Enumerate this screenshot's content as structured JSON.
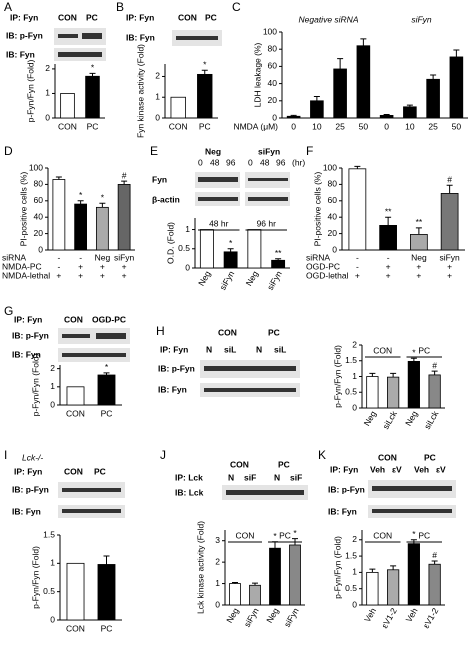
{
  "letters": [
    "A",
    "B",
    "C",
    "D",
    "E",
    "F",
    "G",
    "H",
    "I",
    "J",
    "K"
  ],
  "blots": {
    "A": [
      "IP: Fyn",
      "CON",
      "PC",
      "IB: p-Fyn",
      "IB: Fyn"
    ],
    "B": [
      "IP: Fyn",
      "CON",
      "PC",
      "IB: Fyn"
    ],
    "E": [
      "Neg",
      "siFyn",
      "0",
      "48",
      "96",
      "0",
      "48",
      "96",
      "(hr)",
      "Fyn",
      "β-actin"
    ],
    "G": [
      "IP: Fyn",
      "CON",
      "OGD-PC",
      "IB: p-Fyn",
      "IB: Fyn"
    ],
    "H": [
      "CON",
      "PC",
      "IP: Fyn",
      "N",
      "siL",
      "N",
      "siL",
      "IB: p-Fyn",
      "IB: Fyn"
    ],
    "I": [
      "Lck-/-",
      "IP: Fyn",
      "CON",
      "PC",
      "IB: p-Fyn",
      "IB: Fyn"
    ],
    "J": [
      "CON",
      "PC",
      "IP: Lck",
      "N",
      "siF",
      "N",
      "siF",
      "IB: Lck"
    ],
    "K": [
      "CON",
      "PC",
      "IP: Fyn",
      "Veh",
      "εV",
      "Veh",
      "εV",
      "IB: p-Fyn",
      "IB: Fyn"
    ]
  },
  "chart_data": [
    {
      "type": "bar",
      "ylabel": "p-Fyn/Fyn (Fold)",
      "categories": [
        "CON",
        "PC"
      ],
      "values": [
        1,
        1.7
      ],
      "errors": [
        null,
        0.12
      ],
      "colors": [
        "#ffffff",
        "#000000"
      ],
      "annotations": [
        null,
        "*"
      ],
      "ylim": [
        0,
        2.2
      ],
      "yticks": [
        0,
        1,
        2
      ]
    },
    {
      "type": "bar",
      "ylabel": "Fyn kinase activity (Fold)",
      "categories": [
        "CON",
        "PC"
      ],
      "values": [
        1,
        2.1
      ],
      "errors": [
        null,
        0.2
      ],
      "colors": [
        "#ffffff",
        "#000000"
      ],
      "annotations": [
        null,
        "*"
      ],
      "ylim": [
        0,
        2.6
      ],
      "yticks": [
        0,
        1,
        2
      ]
    },
    {
      "type": "bar",
      "ylabel": "LDH leakage (%)",
      "xlabel": "NMDA (μM)",
      "groups": [
        "Negative siRNA",
        "siFyn"
      ],
      "categories": [
        "0",
        "10",
        "25",
        "50",
        "0",
        "10",
        "25",
        "50"
      ],
      "values": [
        2,
        20,
        57,
        84,
        3,
        13,
        45,
        71
      ],
      "errors": [
        1,
        5,
        12,
        8,
        1,
        2,
        5,
        8
      ],
      "colors": [
        "#000000",
        "#000000",
        "#000000",
        "#000000",
        "#000000",
        "#000000",
        "#000000",
        "#000000"
      ],
      "ylim": [
        0,
        100
      ],
      "yticks": [
        0,
        20,
        40,
        60,
        80,
        100
      ]
    },
    {
      "type": "bar",
      "ylabel": "PI-positive cells (%)",
      "categories": [
        "",
        "",
        "",
        ""
      ],
      "values": [
        86,
        56,
        52,
        80
      ],
      "errors": [
        3,
        4,
        5,
        4
      ],
      "colors": [
        "#ffffff",
        "#000000",
        "#aaaaaa",
        "#666666"
      ],
      "annotations": [
        null,
        "*",
        "*",
        "#"
      ],
      "rows": [
        {
          "label": "siRNA",
          "cells": [
            "-",
            "-",
            "Neg",
            "siFyn"
          ]
        },
        {
          "label": "NMDA-PC",
          "cells": [
            "-",
            "+",
            "+",
            "+"
          ]
        },
        {
          "label": "NMDA-lethal",
          "cells": [
            "+",
            "+",
            "+",
            "+"
          ]
        }
      ],
      "ylim": [
        0,
        100
      ],
      "yticks": [
        0,
        20,
        40,
        60,
        80,
        100
      ]
    },
    {
      "type": "bar",
      "ylabel": "O.D. (Fold)",
      "groups": [
        "48 hr",
        "96 hr"
      ],
      "categories": [
        "Neg",
        "siFyn",
        "Neg",
        "siFyn"
      ],
      "values": [
        1,
        0.42,
        1,
        0.2
      ],
      "errors": [
        null,
        0.08,
        null,
        0.04
      ],
      "colors": [
        "#ffffff",
        "#000000",
        "#ffffff",
        "#000000"
      ],
      "annotations": [
        null,
        "*",
        null,
        "**"
      ],
      "ylim": [
        0,
        1.3
      ],
      "yticks": [
        0,
        0.5,
        1
      ]
    },
    {
      "type": "bar",
      "ylabel": "PI-positive cells (%)",
      "categories": [
        "",
        "",
        "",
        ""
      ],
      "values": [
        99,
        30,
        19,
        69
      ],
      "errors": [
        3,
        10,
        8,
        10
      ],
      "colors": [
        "#ffffff",
        "#000000",
        "#aaaaaa",
        "#777777"
      ],
      "annotations": [
        null,
        "**",
        "**",
        "#"
      ],
      "rows": [
        {
          "label": "siRNA",
          "cells": [
            "-",
            "-",
            "Neg",
            "siFyn"
          ]
        },
        {
          "label": "OGD-PC",
          "cells": [
            "-",
            "+",
            "+",
            "+"
          ]
        },
        {
          "label": "OGD-lethal",
          "cells": [
            "+",
            "+",
            "+",
            "+"
          ]
        }
      ],
      "ylim": [
        0,
        100
      ],
      "yticks": [
        0,
        20,
        40,
        60,
        80,
        100
      ]
    },
    {
      "type": "bar",
      "ylabel": "p-Fyn/Fyn (Fold)",
      "categories": [
        "CON",
        "PC"
      ],
      "values": [
        1,
        1.65
      ],
      "errors": [
        null,
        0.12
      ],
      "colors": [
        "#ffffff",
        "#000000"
      ],
      "annotations": [
        null,
        "*"
      ],
      "ylim": [
        0,
        2.2
      ],
      "yticks": [
        0,
        1,
        2
      ]
    },
    {
      "type": "bar",
      "ylabel": "p-Fyn/Fyn (Fold)",
      "groups": [
        "CON",
        "PC"
      ],
      "categories": [
        "Neg",
        "siLck",
        "Neg",
        "siLck"
      ],
      "values": [
        1,
        0.98,
        1.48,
        1.05
      ],
      "errors": [
        0.1,
        0.12,
        0.1,
        0.12
      ],
      "colors": [
        "#ffffff",
        "#aaaaaa",
        "#000000",
        "#888888"
      ],
      "annotations": [
        null,
        null,
        "*",
        "#"
      ],
      "ylim": [
        0,
        2
      ],
      "yticks": [
        0,
        0.5,
        1,
        1.5,
        2
      ]
    },
    {
      "type": "bar",
      "ylabel": "p-Fyn/Fyn (Fold)",
      "categories": [
        "CON",
        "PC"
      ],
      "values": [
        1,
        0.98
      ],
      "errors": [
        null,
        0.15
      ],
      "colors": [
        "#ffffff",
        "#000000"
      ],
      "ylim": [
        0,
        1.5
      ],
      "yticks": [
        0,
        0.5,
        1,
        1.5
      ]
    },
    {
      "type": "bar",
      "ylabel": "Lck kinase activity (Fold)",
      "groups": [
        "CON",
        "PC"
      ],
      "categories": [
        "Neg",
        "siFyn",
        "Neg",
        "siFyn"
      ],
      "values": [
        1,
        0.92,
        2.65,
        2.8
      ],
      "errors": [
        0.05,
        0.1,
        0.3,
        0.3
      ],
      "colors": [
        "#ffffff",
        "#aaaaaa",
        "#000000",
        "#888888"
      ],
      "annotations": [
        null,
        null,
        "*",
        "*"
      ],
      "ylim": [
        0,
        3.5
      ],
      "yticks": [
        0,
        1,
        2,
        3
      ]
    },
    {
      "type": "bar",
      "ylabel": "p-Fyn/Fyn (Fold)",
      "groups": [
        "CON",
        "PC"
      ],
      "categories": [
        "Veh",
        "εV1-2",
        "Veh",
        "εV1-2"
      ],
      "values": [
        1,
        1.08,
        1.88,
        1.25
      ],
      "errors": [
        0.1,
        0.12,
        0.12,
        0.1
      ],
      "colors": [
        "#ffffff",
        "#aaaaaa",
        "#000000",
        "#888888"
      ],
      "annotations": [
        null,
        null,
        "*",
        "#"
      ],
      "ylim": [
        0,
        2.3
      ],
      "yticks": [
        0,
        0.5,
        1,
        1.5,
        2
      ]
    }
  ]
}
